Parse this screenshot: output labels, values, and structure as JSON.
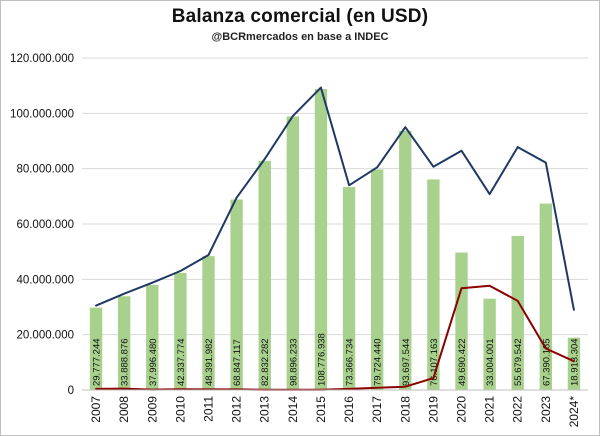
{
  "chart_data": {
    "type": "bar",
    "title": "Balanza comercial (en USD)",
    "subtitle": "@BCRmercados en base a INDEC",
    "categories": [
      "2007",
      "2008",
      "2009",
      "2010",
      "2011",
      "2012",
      "2013",
      "2014",
      "2015",
      "2016",
      "2017",
      "2018",
      "2019",
      "2020",
      "2021",
      "2022",
      "2023",
      "2024*"
    ],
    "ylim": [
      0,
      120000000
    ],
    "yticks": [
      0,
      20000000,
      40000000,
      60000000,
      80000000,
      100000000,
      120000000
    ],
    "ytick_labels": [
      "0",
      "20.000.000",
      "40.000.000",
      "60.000.000",
      "80.000.000",
      "100.000.000",
      "120.000.000"
    ],
    "grid": true,
    "series": [
      {
        "kind": "bar",
        "color": "#a9d18e",
        "values": [
          29777244,
          33888876,
          37996480,
          42337774,
          48391982,
          68847117,
          82832282,
          98896233,
          108776938,
          73366734,
          79724440,
          93697544,
          76107163,
          49690422,
          33004001,
          55679542,
          67390185,
          18913304
        ],
        "labels": [
          "29.777.244",
          "33.888.876",
          "37.996.480",
          "42.337.774",
          "48.391.982",
          "68.847.117",
          "82.832.282",
          "98.896.233",
          "108.776.938",
          "73.366.734",
          "79.724.440",
          "93.697.544",
          "76.107.163",
          "49.690.422",
          "33.004.001",
          "55.679.542",
          "67.390.185",
          "18.913.304"
        ]
      },
      {
        "kind": "line",
        "color": "#1f3864",
        "values": [
          30500000,
          34800000,
          38800000,
          43000000,
          48800000,
          69500000,
          83500000,
          99000000,
          109300000,
          74000000,
          80500000,
          95000000,
          80700000,
          86500000,
          70800000,
          87800000,
          82200000,
          29000000
        ]
      },
      {
        "kind": "line",
        "color": "#8b0000",
        "values": [
          400000,
          500000,
          150000,
          300000,
          200000,
          200000,
          100000,
          100000,
          100000,
          400000,
          800000,
          1200000,
          4300000,
          36800000,
          37700000,
          32200000,
          15000000,
          10400000
        ]
      }
    ]
  }
}
